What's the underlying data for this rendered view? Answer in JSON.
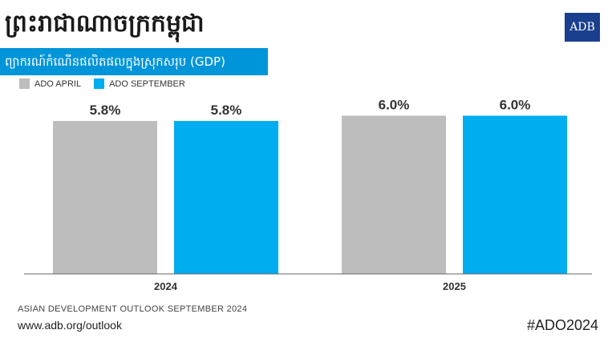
{
  "header": {
    "title": "ព្រះរាជាណាចក្រកម្ពុជា",
    "subtitle": "ព្យាករណ៍កំណើនផលិតផលក្នុងស្រុកសរុប (GDP)",
    "logo": "ADB"
  },
  "legend": [
    {
      "label": "ADO APRIL",
      "color": "#bdbdbd"
    },
    {
      "label": "ADO SEPTEMBER",
      "color": "#00adef"
    }
  ],
  "chart_data": {
    "type": "bar",
    "categories": [
      "2024",
      "2025"
    ],
    "series": [
      {
        "name": "ADO APRIL",
        "values": [
          5.8,
          6.0
        ],
        "labels": [
          "5.8%",
          "6.0%"
        ],
        "color": "#bdbdbd"
      },
      {
        "name": "ADO SEPTEMBER",
        "values": [
          5.8,
          6.0
        ],
        "labels": [
          "5.8%",
          "6.0%"
        ],
        "color": "#00adef"
      }
    ],
    "ylim": [
      0,
      6.5
    ],
    "grid": false,
    "legend": "top-left"
  },
  "footer": {
    "source": "ASIAN DEVELOPMENT OUTLOOK SEPTEMBER 2024",
    "url": "www.adb.org/outlook",
    "hashtag": "#ADO2024"
  }
}
